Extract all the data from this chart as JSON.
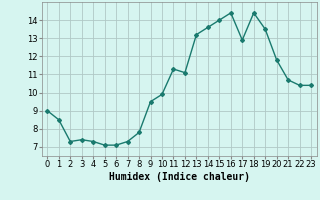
{
  "x": [
    0,
    1,
    2,
    3,
    4,
    5,
    6,
    7,
    8,
    9,
    10,
    11,
    12,
    13,
    14,
    15,
    16,
    17,
    18,
    19,
    20,
    21,
    22,
    23
  ],
  "y": [
    9.0,
    8.5,
    7.3,
    7.4,
    7.3,
    7.1,
    7.1,
    7.3,
    7.8,
    9.5,
    9.9,
    11.3,
    11.1,
    13.2,
    13.6,
    14.0,
    14.4,
    12.9,
    14.4,
    13.5,
    11.8,
    10.7,
    10.4,
    10.4
  ],
  "line_color": "#1a7a6e",
  "marker": "D",
  "marker_size": 2,
  "bg_color": "#d6f5f0",
  "grid_color": "#b0c8c5",
  "xlabel": "Humidex (Indice chaleur)",
  "xlim": [
    -0.5,
    23.5
  ],
  "ylim": [
    6.5,
    15.0
  ],
  "yticks": [
    7,
    8,
    9,
    10,
    11,
    12,
    13,
    14
  ],
  "xticks": [
    0,
    1,
    2,
    3,
    4,
    5,
    6,
    7,
    8,
    9,
    10,
    11,
    12,
    13,
    14,
    15,
    16,
    17,
    18,
    19,
    20,
    21,
    22,
    23
  ],
  "tick_fontsize": 6,
  "xlabel_fontsize": 7,
  "linewidth": 1.0
}
